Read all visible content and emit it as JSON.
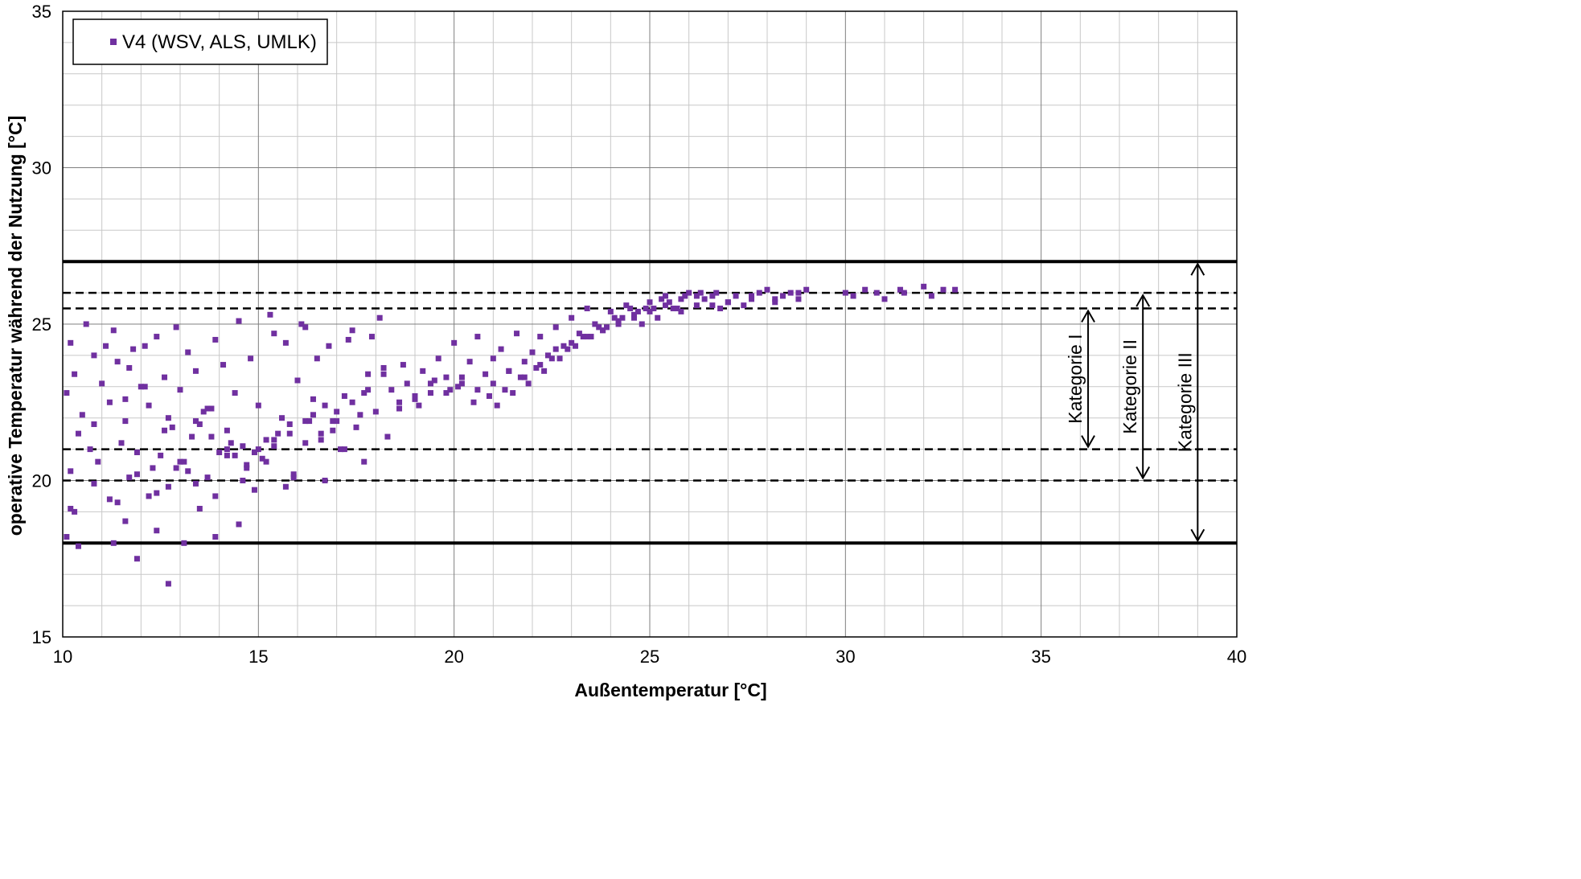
{
  "chart_data": {
    "type": "scatter",
    "title": "",
    "xlabel": "Außentemperatur  [°C]",
    "ylabel": "operative Temperatur während der Nutzung  [°C]",
    "xlim": [
      10,
      40
    ],
    "ylim": [
      15,
      35
    ],
    "x_ticks": [
      "10",
      "15",
      "20",
      "25",
      "30",
      "35",
      "40"
    ],
    "y_ticks": [
      "15",
      "20",
      "25",
      "30",
      "35"
    ],
    "grid": true,
    "legend": {
      "placement": "top-left"
    },
    "series_color": "#7030A0",
    "series": [
      {
        "name": "V4 (WSV, ALS, UMLK)",
        "x": [
          10.1,
          10.3,
          10.5,
          10.8,
          11.0,
          11.2,
          11.4,
          11.6,
          11.8,
          12.0,
          12.2,
          12.4,
          12.6,
          12.8,
          13.0,
          13.2,
          13.4,
          13.6,
          13.8,
          14.0,
          14.2,
          14.4,
          14.6,
          14.8,
          15.0,
          15.2,
          15.4,
          15.6,
          15.8,
          16.0,
          16.2,
          16.4,
          16.6,
          16.8,
          17.0,
          17.2,
          17.4,
          17.6,
          17.8,
          18.0,
          18.2,
          18.4,
          18.6,
          18.8,
          19.0,
          19.2,
          19.4,
          19.6,
          19.8,
          20.0,
          20.2,
          20.4,
          20.6,
          20.8,
          21.0,
          21.2,
          21.4,
          21.6,
          21.8,
          22.0,
          22.2,
          22.4,
          22.6,
          22.8,
          23.0,
          23.2,
          23.4,
          23.6,
          23.8,
          24.0,
          24.2,
          24.4,
          24.6,
          24.8,
          25.0,
          25.2,
          25.4,
          25.6,
          25.8,
          26.0,
          26.2,
          26.4,
          26.6,
          26.8,
          27.0,
          27.2,
          27.4,
          27.6,
          27.8,
          28.0,
          28.2,
          28.4,
          28.6,
          28.8,
          29.0,
          30.0,
          30.5,
          31.0,
          31.5,
          32.0,
          32.5,
          10.2,
          10.6,
          11.1,
          11.5,
          11.9,
          12.3,
          12.7,
          13.1,
          13.5,
          13.9,
          14.3,
          14.7,
          15.1,
          15.5,
          15.9,
          16.3,
          16.7,
          17.1,
          17.5,
          17.9,
          18.3,
          18.7,
          19.1,
          19.5,
          19.9,
          10.4,
          10.9,
          11.3,
          11.7,
          12.1,
          12.5,
          12.9,
          13.3,
          13.7,
          14.1,
          14.5,
          14.9,
          15.3,
          15.7,
          16.1,
          16.5,
          16.9,
          17.3,
          17.7,
          18.1,
          10.2,
          10.7,
          11.2,
          11.7,
          12.2,
          12.7,
          13.2,
          13.7,
          14.2,
          14.7,
          15.2,
          15.7,
          16.2,
          16.7,
          17.2,
          17.7,
          10.3,
          10.8,
          11.4,
          11.9,
          12.4,
          12.9,
          13.4,
          13.9,
          14.4,
          14.9,
          15.4,
          15.9,
          16.4,
          16.9,
          10.1,
          10.4,
          11.3,
          11.6,
          11.9,
          12.4,
          12.7,
          13.1,
          13.5,
          13.9,
          14.5,
          10.2,
          10.8,
          11.6,
          12.1,
          12.6,
          13.0,
          13.4,
          13.8,
          14.2,
          14.6,
          15.0,
          15.4,
          15.8,
          16.2,
          16.6,
          17.0,
          17.4,
          17.8,
          18.2,
          18.6,
          19.0,
          19.4,
          19.8,
          20.2,
          20.6,
          21.0,
          21.4,
          21.8,
          22.2,
          22.6,
          23.0,
          23.4,
          23.8,
          24.2,
          24.6,
          25.0,
          25.4,
          25.8,
          26.2,
          26.6,
          27.0,
          27.6,
          28.2,
          28.8,
          30.2,
          30.8,
          31.4,
          32.2,
          32.8,
          21.1,
          21.5,
          21.9,
          22.3,
          22.7,
          23.1,
          23.5,
          23.9,
          24.3,
          24.7,
          25.1,
          25.5,
          25.9,
          26.3,
          26.7,
          20.1,
          20.5,
          20.9,
          21.3,
          21.7,
          22.1,
          22.5,
          22.9,
          23.3,
          23.7,
          24.1,
          24.5,
          24.9,
          25.3,
          25.7
        ],
        "y": [
          22.8,
          23.4,
          22.1,
          24.0,
          23.1,
          22.5,
          23.8,
          21.9,
          24.2,
          23.0,
          22.4,
          24.6,
          23.3,
          21.7,
          22.9,
          24.1,
          23.5,
          22.2,
          21.4,
          20.9,
          21.6,
          22.8,
          21.1,
          23.9,
          22.4,
          21.3,
          24.7,
          22.0,
          21.8,
          23.2,
          24.9,
          22.6,
          21.5,
          24.3,
          21.9,
          22.7,
          24.8,
          22.1,
          23.4,
          22.2,
          23.6,
          22.9,
          22.5,
          23.1,
          22.6,
          23.5,
          22.8,
          23.9,
          23.3,
          24.4,
          23.1,
          23.8,
          24.6,
          23.4,
          23.9,
          24.2,
          23.5,
          24.7,
          23.8,
          24.1,
          24.6,
          24.0,
          24.9,
          24.3,
          25.2,
          24.7,
          25.5,
          25.0,
          24.8,
          25.4,
          25.1,
          25.6,
          25.3,
          25.0,
          25.7,
          25.2,
          25.9,
          25.5,
          25.4,
          26.0,
          25.6,
          25.8,
          25.9,
          25.5,
          25.7,
          25.9,
          25.6,
          25.8,
          26.0,
          26.1,
          25.7,
          25.9,
          26.0,
          25.8,
          26.1,
          26.0,
          26.1,
          25.8,
          26.0,
          26.2,
          26.1,
          24.4,
          25.0,
          24.3,
          21.2,
          20.9,
          20.4,
          22.0,
          20.6,
          21.8,
          24.5,
          21.2,
          20.5,
          20.7,
          21.5,
          20.2,
          21.9,
          22.4,
          21.0,
          21.7,
          24.6,
          21.4,
          23.7,
          22.4,
          23.2,
          22.9,
          21.5,
          20.6,
          24.8,
          23.6,
          24.3,
          20.8,
          24.9,
          21.4,
          22.3,
          23.7,
          25.1,
          20.9,
          25.3,
          24.4,
          25.0,
          23.9,
          21.9,
          24.5,
          22.8,
          25.2,
          20.3,
          21.0,
          19.4,
          20.1,
          19.5,
          19.8,
          20.3,
          20.1,
          21.0,
          20.4,
          20.6,
          19.8,
          21.2,
          20.0,
          21.0,
          20.6,
          19.0,
          19.9,
          19.3,
          20.2,
          19.6,
          20.4,
          19.9,
          19.5,
          20.8,
          19.7,
          21.3,
          20.1,
          22.1,
          21.6,
          18.2,
          17.9,
          18.0,
          18.7,
          17.5,
          18.4,
          16.7,
          18.0,
          19.1,
          18.2,
          18.6,
          19.1,
          21.8,
          22.6,
          23.0,
          21.6,
          20.6,
          21.9,
          22.3,
          20.8,
          20.0,
          21.0,
          21.1,
          21.5,
          21.9,
          21.3,
          22.2,
          22.5,
          22.9,
          23.4,
          22.3,
          22.7,
          23.1,
          22.8,
          23.3,
          22.9,
          23.1,
          23.5,
          23.3,
          23.7,
          24.2,
          24.4,
          24.6,
          24.8,
          25.0,
          25.2,
          25.4,
          25.6,
          25.8,
          25.9,
          25.6,
          25.7,
          25.9,
          25.8,
          26.0,
          25.9,
          26.0,
          26.1,
          25.9,
          26.1,
          22.4,
          22.8,
          23.1,
          23.5,
          23.9,
          24.3,
          24.6,
          24.9,
          25.2,
          25.4,
          25.5,
          25.7,
          25.9,
          26.0,
          26.0,
          23.0,
          22.5,
          22.7,
          22.9,
          23.3,
          23.6,
          23.9,
          24.2,
          24.6,
          24.9,
          25.2,
          25.5,
          25.5,
          25.8,
          25.5
        ]
      }
    ],
    "reference_lines": [
      {
        "y": 27.0,
        "style": "solid"
      },
      {
        "y": 26.0,
        "style": "dashed"
      },
      {
        "y": 25.5,
        "style": "dashed"
      },
      {
        "y": 21.0,
        "style": "dashed"
      },
      {
        "y": 20.0,
        "style": "dashed"
      },
      {
        "y": 18.0,
        "style": "solid"
      }
    ],
    "categories_bands": [
      {
        "label": "Kategorie  I",
        "x": 36.2,
        "y_range": [
          21.0,
          25.5
        ]
      },
      {
        "label": "Kategorie  II",
        "x": 37.6,
        "y_range": [
          20.0,
          26.0
        ]
      },
      {
        "label": "Kategorie  III",
        "x": 39.0,
        "y_range": [
          18.0,
          27.0
        ]
      }
    ]
  }
}
